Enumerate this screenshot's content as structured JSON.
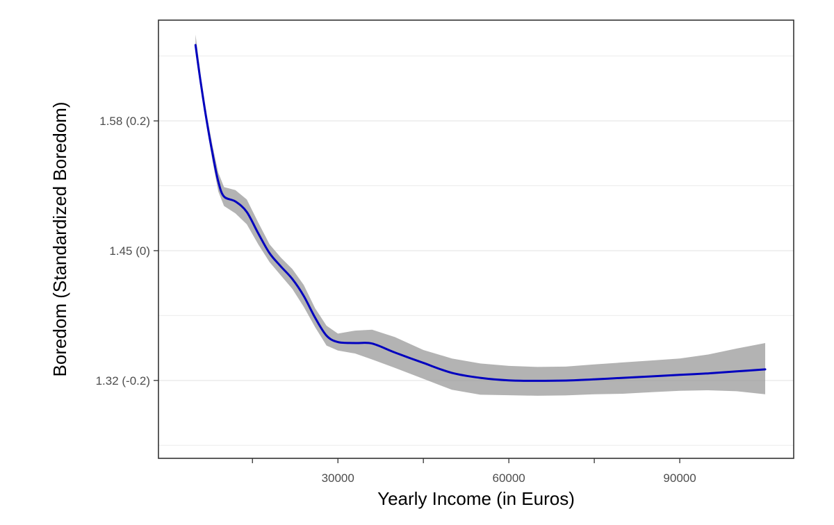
{
  "chart_data": {
    "type": "line",
    "title": "",
    "xlabel": "Yearly Income (in Euros)",
    "ylabel": "Boredom (Standardized Boredom)",
    "xlim": [
      -1500,
      110000
    ],
    "ylim": [
      1.2415,
      1.6825
    ],
    "x_ticks": [
      30000,
      60000,
      90000
    ],
    "x_minor_ticks": [
      15000,
      45000,
      75000
    ],
    "y_ticks": [
      {
        "value": 1.3199,
        "label": "1.32 (-0.2)"
      },
      {
        "value": 1.4505,
        "label": "1.45 (0)"
      },
      {
        "value": 1.5811,
        "label": "1.58 (0.2)"
      }
    ],
    "y_minor_gridlines": [
      1.2546,
      1.3852,
      1.5158,
      1.6464
    ],
    "grid": true,
    "smoothed_series": {
      "x": [
        5000,
        6000,
        7000,
        8000,
        9000,
        10000,
        12000,
        14000,
        16000,
        18000,
        20000,
        22000,
        24000,
        26000,
        28000,
        30000,
        33000,
        36000,
        40000,
        45000,
        50000,
        55000,
        60000,
        65000,
        70000,
        75000,
        80000,
        85000,
        90000,
        95000,
        100000,
        105000
      ],
      "y": [
        1.6575,
        1.6165,
        1.58,
        1.548,
        1.52,
        1.505,
        1.5,
        1.4895,
        1.468,
        1.448,
        1.4345,
        1.422,
        1.405,
        1.383,
        1.365,
        1.3585,
        1.3575,
        1.357,
        1.348,
        1.3375,
        1.3275,
        1.3225,
        1.32,
        1.3195,
        1.3198,
        1.321,
        1.3225,
        1.324,
        1.3255,
        1.327,
        1.329,
        1.331
      ],
      "ci_lower": [
        1.65,
        1.61,
        1.574,
        1.54,
        1.51,
        1.4955,
        1.488,
        1.477,
        1.457,
        1.439,
        1.4255,
        1.412,
        1.394,
        1.3735,
        1.355,
        1.35,
        1.347,
        1.341,
        1.3325,
        1.3215,
        1.3105,
        1.3055,
        1.305,
        1.3045,
        1.3048,
        1.306,
        1.3065,
        1.308,
        1.3095,
        1.31,
        1.309,
        1.306
      ],
      "ci_upper": [
        1.668,
        1.624,
        1.587,
        1.556,
        1.529,
        1.5145,
        1.5115,
        1.502,
        1.479,
        1.457,
        1.4435,
        1.432,
        1.416,
        1.3925,
        1.375,
        1.367,
        1.37,
        1.371,
        1.3635,
        1.3505,
        1.342,
        1.337,
        1.3345,
        1.3335,
        1.3338,
        1.336,
        1.338,
        1.34,
        1.342,
        1.346,
        1.352,
        1.3575
      ]
    },
    "colors": {
      "line": "#0000bf",
      "ribbon": "#999999",
      "grid": "#ebebeb",
      "panel_border": "#333333",
      "tick_text": "#4d4d4d",
      "axis_title": "#000000"
    }
  }
}
